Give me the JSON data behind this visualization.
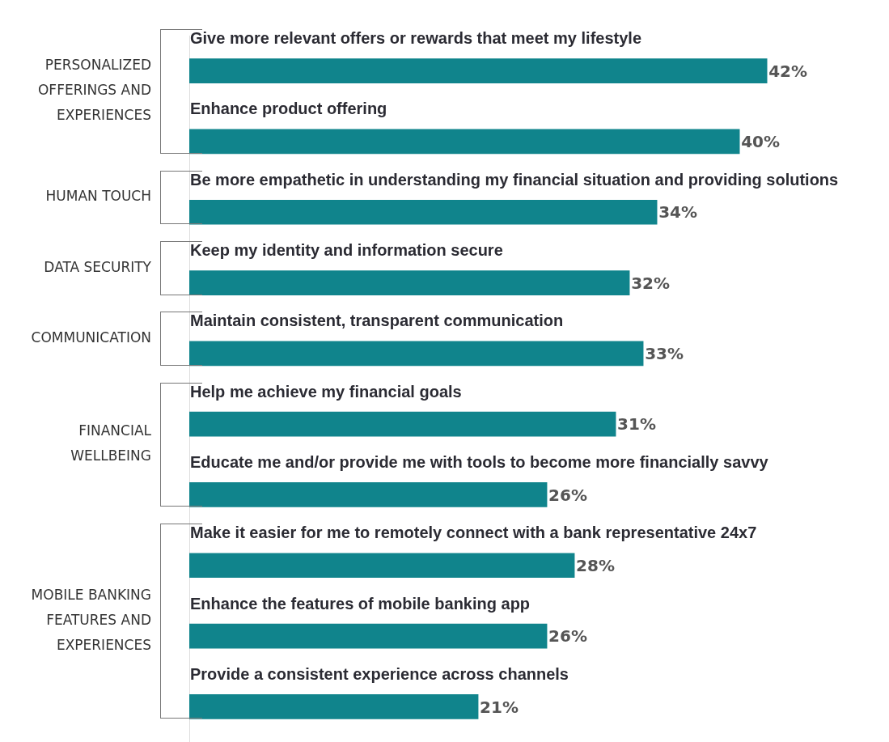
{
  "chart_data": {
    "type": "bar",
    "orientation": "horizontal",
    "categories": [
      "Give more relevant offers or rewards that meet my lifestyle",
      "Enhance product offering",
      "Be more empathetic in understanding my financial situation and providing solutions",
      "Keep my identity and information secure",
      "Maintain consistent, transparent communication",
      "Help me achieve my financial goals",
      "Educate me and/or provide me with tools to become more financially savvy",
      "Make it easier for me to remotely connect with a bank representative 24x7",
      "Enhance the features of mobile banking app",
      "Provide a consistent experience across channels"
    ],
    "values": [
      42,
      40,
      34,
      32,
      33,
      31,
      26,
      28,
      26,
      21
    ],
    "value_labels": [
      "42%",
      "40%",
      "34%",
      "32%",
      "33%",
      "31%",
      "26%",
      "28%",
      "26%",
      "21%"
    ],
    "color": "#10848c",
    "annotations": [
      "PERSONALIZED OFFERINGS AND EXPERIENCES",
      "HUMAN TOUCH",
      "DATA SECURITY",
      "COMMUNICATION",
      "FINANCIAL WELLBEING",
      "MOBILE BANKING FEATURES AND EXPERIENCES"
    ],
    "legend": false
  }
}
